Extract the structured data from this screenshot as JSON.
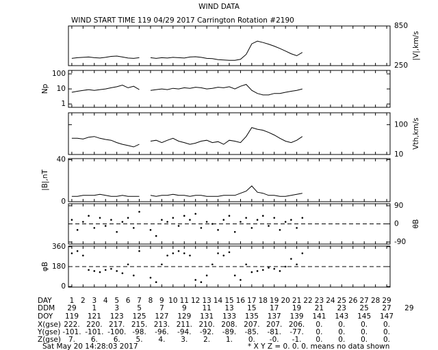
{
  "title": "WIND DATA",
  "subtitle": "WIND START TIME 119 04/29 2017 Carrington Rotation #2190",
  "chart_data": [
    {
      "type": "line",
      "y_label": "|V|,km/s",
      "axis_side": "right",
      "color": "#000000",
      "xlim": [
        0.7,
        29.3
      ],
      "x": [
        1,
        1.5,
        2,
        2.5,
        3,
        3.5,
        4,
        4.5,
        5,
        5.5,
        6,
        6.5,
        7,
        7.5,
        8,
        8.5,
        9,
        9.5,
        10,
        10.5,
        11,
        11.5,
        12,
        12.5,
        13,
        13.5,
        14,
        14.5,
        15,
        15.5,
        16,
        16.5,
        17,
        17.5,
        18,
        18.5,
        19,
        19.5,
        20,
        20.5,
        21,
        21.5
      ],
      "values": [
        360,
        370,
        375,
        380,
        370,
        365,
        375,
        390,
        395,
        380,
        365,
        360,
        370,
        null,
        370,
        360,
        370,
        365,
        375,
        370,
        365,
        380,
        385,
        375,
        360,
        355,
        340,
        335,
        330,
        330,
        345,
        420,
        580,
        620,
        600,
        575,
        545,
        510,
        470,
        430,
        400,
        450
      ],
      "ylim": [
        250,
        850
      ],
      "yticks": [
        850,
        250
      ]
    },
    {
      "type": "line",
      "y_label": "Np",
      "axis_side": "left",
      "log_scale": true,
      "color": "#000000",
      "xlim": [
        0.7,
        29.3
      ],
      "x": [
        1,
        1.5,
        2,
        2.5,
        3,
        3.5,
        4,
        4.5,
        5,
        5.5,
        6,
        6.5,
        7,
        7.5,
        8,
        8.5,
        9,
        9.5,
        10,
        10.5,
        11,
        11.5,
        12,
        12.5,
        13,
        13.5,
        14,
        14.5,
        15,
        15.5,
        16,
        16.5,
        17,
        17.5,
        18,
        18.5,
        19,
        19.5,
        20,
        20.5,
        21,
        21.5
      ],
      "values": [
        6,
        7,
        8,
        9,
        8,
        9,
        10,
        12,
        14,
        18,
        12,
        15,
        9,
        null,
        8,
        9,
        10,
        9,
        11,
        10,
        12,
        11,
        13,
        12,
        10,
        11,
        13,
        12,
        14,
        10,
        15,
        20,
        8,
        5,
        4,
        4,
        5,
        5,
        6,
        7,
        8,
        10
      ],
      "ylim": [
        0.6,
        170
      ],
      "yticks": [
        100,
        10,
        1
      ]
    },
    {
      "type": "line",
      "y_label": "Vth,km/s",
      "axis_side": "right",
      "log_scale": true,
      "color": "#000000",
      "xlim": [
        0.7,
        29.3
      ],
      "x": [
        1,
        1.5,
        2,
        2.5,
        3,
        3.5,
        4,
        4.5,
        5,
        5.5,
        6,
        6.5,
        7,
        7.5,
        8,
        8.5,
        9,
        9.5,
        10,
        10.5,
        11,
        11.5,
        12,
        12.5,
        13,
        13.5,
        14,
        14.5,
        15,
        15.5,
        16,
        16.5,
        17,
        17.5,
        18,
        18.5,
        19,
        19.5,
        20,
        20.5,
        21,
        21.5
      ],
      "values": [
        35,
        35,
        33,
        38,
        40,
        35,
        32,
        30,
        25,
        22,
        20,
        18,
        22,
        null,
        28,
        30,
        25,
        30,
        35,
        28,
        25,
        22,
        24,
        28,
        30,
        25,
        27,
        22,
        30,
        28,
        25,
        40,
        80,
        70,
        65,
        55,
        45,
        35,
        28,
        25,
        30,
        40
      ],
      "ylim": [
        10,
        250
      ],
      "yticks": [
        100,
        10
      ]
    },
    {
      "type": "line",
      "y_label": "|B|,nT",
      "axis_side": "left",
      "color": "#000000",
      "xlim": [
        0.7,
        29.3
      ],
      "x": [
        1,
        1.5,
        2,
        2.5,
        3,
        3.5,
        4,
        4.5,
        5,
        5.5,
        6,
        6.5,
        7,
        7.5,
        8,
        8.5,
        9,
        9.5,
        10,
        10.5,
        11,
        11.5,
        12,
        12.5,
        13,
        13.5,
        14,
        14.5,
        15,
        15.5,
        16,
        16.5,
        17,
        17.5,
        18,
        18.5,
        19,
        19.5,
        20,
        20.5,
        21,
        21.5
      ],
      "values": [
        5,
        5,
        6,
        6,
        6,
        7,
        6,
        5,
        5,
        6,
        5,
        5,
        5,
        null,
        6,
        5,
        6,
        6,
        7,
        6,
        6,
        5,
        6,
        6,
        5,
        5,
        5,
        6,
        6,
        6,
        8,
        10,
        15,
        9,
        8,
        6,
        6,
        5,
        5,
        6,
        7,
        8
      ],
      "ylim": [
        0,
        41
      ],
      "yticks": [
        40,
        0
      ]
    },
    {
      "type": "scatter",
      "y_label": "θB",
      "axis_side": "right",
      "color": "#000000",
      "ref_line": 0,
      "xlim": [
        0.7,
        29.3
      ],
      "x": [
        1,
        1.5,
        2,
        2.5,
        3,
        3.5,
        4,
        4.5,
        5,
        5.5,
        6,
        6.5,
        7,
        7.5,
        8,
        8.5,
        9,
        9.5,
        10,
        10.5,
        11,
        11.5,
        12,
        12.5,
        13,
        13.5,
        14,
        14.5,
        15,
        15.5,
        16,
        16.5,
        17,
        17.5,
        18,
        18.5,
        19,
        19.5,
        20,
        20.5,
        21,
        21.5
      ],
      "values": [
        20,
        -30,
        10,
        40,
        -20,
        30,
        -10,
        20,
        -40,
        10,
        30,
        -20,
        60,
        null,
        -30,
        -60,
        20,
        10,
        30,
        -10,
        40,
        20,
        50,
        -20,
        10,
        0,
        -30,
        20,
        40,
        -40,
        10,
        30,
        -20,
        20,
        40,
        -10,
        30,
        -30,
        10,
        20,
        -20,
        30
      ],
      "ylim": [
        -100,
        100
      ],
      "yticks": [
        90,
        0,
        -90
      ]
    },
    {
      "type": "scatter",
      "y_label": "φB",
      "axis_side": "left",
      "color": "#000000",
      "ref_line": 180,
      "xlim": [
        0.7,
        29.3
      ],
      "x": [
        1,
        1.5,
        2,
        2.5,
        3,
        3.5,
        4,
        4.5,
        5,
        5.5,
        6,
        6.5,
        7,
        7.5,
        8,
        8.5,
        9,
        9.5,
        10,
        10.5,
        11,
        11.5,
        12,
        12.5,
        13,
        13.5,
        14,
        14.5,
        15,
        15.5,
        16,
        16.5,
        17,
        17.5,
        18,
        18.5,
        19,
        19.5,
        20,
        20.5,
        21,
        21.5
      ],
      "values": [
        300,
        320,
        280,
        150,
        140,
        130,
        150,
        160,
        140,
        120,
        200,
        100,
        320,
        null,
        80,
        40,
        200,
        280,
        300,
        320,
        300,
        280,
        60,
        40,
        100,
        200,
        300,
        280,
        310,
        100,
        60,
        200,
        130,
        140,
        150,
        170,
        160,
        140,
        180,
        250,
        200,
        300
      ],
      "ylim": [
        -5,
        365
      ],
      "yticks": [
        360,
        180,
        0
      ],
      "xticks": [
        1,
        2,
        3,
        4,
        5,
        6,
        7,
        8,
        9,
        10,
        11,
        12,
        13,
        14,
        15,
        16,
        17,
        18,
        19,
        20,
        21,
        22,
        23,
        24,
        25,
        26,
        27,
        28,
        29
      ]
    }
  ],
  "table": {
    "rows": [
      {
        "label": "DAY"
      },
      {
        "label": "DDM",
        "cells": [
          "29",
          "1",
          "3",
          "5",
          "7",
          "9",
          "11",
          "13",
          "15",
          "17",
          "19",
          "21",
          "23",
          "25",
          "27",
          "29"
        ]
      },
      {
        "label": "DOY",
        "cells": [
          "119",
          "121",
          "123",
          "125",
          "127",
          "129",
          "131",
          "133",
          "135",
          "137",
          "139",
          "141",
          "143",
          "145",
          "147"
        ]
      },
      {
        "label": "X(gse)",
        "cells": [
          "222.",
          "220.",
          "217.",
          "215.",
          "213.",
          "211.",
          "210.",
          "208.",
          "207.",
          "207.",
          "206.",
          "0.",
          "0.",
          "0.",
          "0."
        ]
      },
      {
        "label": "Y(gse)",
        "cells": [
          "-101.",
          "-101.",
          "-100.",
          "-98.",
          "-96.",
          "-94.",
          "-92.",
          "-89.",
          "-85.",
          "-81.",
          "-77.",
          "0.",
          "0.",
          "0.",
          "0."
        ]
      },
      {
        "label": "Z(gse)",
        "cells": [
          "7.",
          "6.",
          "6.",
          "5.",
          "4.",
          "3.",
          "2.",
          "1.",
          "0.",
          "-0.",
          "-1.",
          "0.",
          "0.",
          "0.",
          "0."
        ]
      }
    ]
  },
  "footer": {
    "timestamp": "Sat May 20 14:28:03 2017",
    "note": "* X Y Z = 0. 0. 0. means no data shown"
  }
}
